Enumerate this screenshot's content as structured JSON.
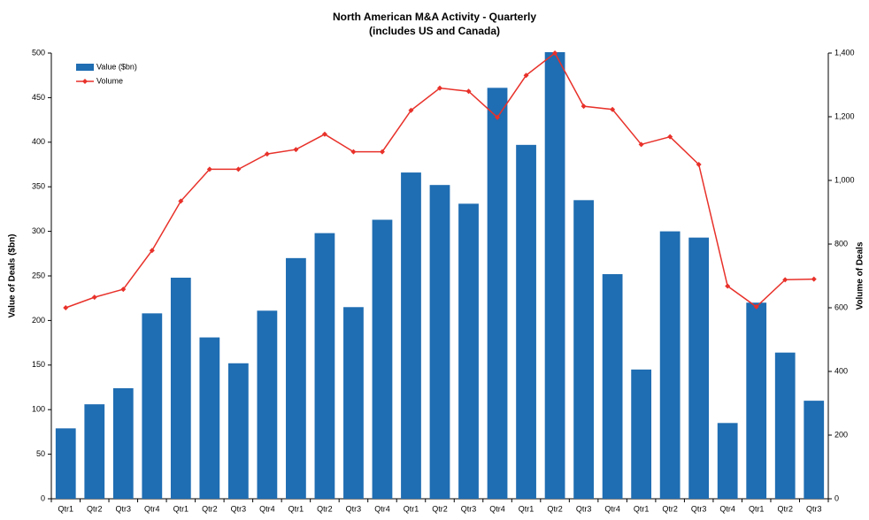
{
  "chart_data": {
    "type": "bar-line",
    "title": "North American M&A Activity - Quarterly",
    "subtitle": "(includes US and Canada)",
    "y_label": "Value of Deals ($bn)",
    "y2_label": "Volume of Deals",
    "categories": [
      "Qtr1",
      "Qtr2",
      "Qtr3",
      "Qtr4",
      "Qtr1",
      "Qtr2",
      "Qtr3",
      "Qtr4",
      "Qtr1",
      "Qtr2",
      "Qtr3",
      "Qtr4",
      "Qtr1",
      "Qtr2",
      "Qtr3",
      "Qtr4",
      "Qtr1",
      "Qtr2",
      "Qtr3",
      "Qtr4",
      "Qtr1",
      "Qtr2",
      "Qtr3",
      "Qtr4",
      "Qtr1",
      "Qtr2",
      "Qtr3"
    ],
    "series": [
      {
        "name": "Value ($bn)",
        "type": "bar",
        "color": "#1f6db2",
        "values": [
          79,
          106,
          124,
          208,
          248,
          181,
          152,
          211,
          270,
          298,
          215,
          313,
          366,
          352,
          331,
          461,
          397,
          501,
          335,
          252,
          145,
          300,
          293,
          85,
          220,
          164,
          110
        ]
      },
      {
        "name": "Volume",
        "type": "line",
        "axis": "y2",
        "color": "#e8312a",
        "values": [
          600,
          633,
          658,
          780,
          935,
          1035,
          1035,
          1083,
          1097,
          1145,
          1090,
          1090,
          1220,
          1290,
          1280,
          1198,
          1330,
          1400,
          1233,
          1223,
          1113,
          1137,
          1050,
          668,
          603,
          688,
          690
        ]
      }
    ],
    "ylim": [
      0,
      500
    ],
    "yticks": [
      0,
      50,
      100,
      150,
      200,
      250,
      300,
      350,
      400,
      450,
      500
    ],
    "y2lim": [
      0,
      1400
    ],
    "y2ticks": [
      0,
      200,
      400,
      600,
      800,
      {
        "value": 1000,
        "label": "1,000"
      },
      {
        "value": 1200,
        "label": "1,200"
      },
      {
        "value": 1400,
        "label": "1,400"
      }
    ],
    "grid": false,
    "legend": "upper left"
  }
}
